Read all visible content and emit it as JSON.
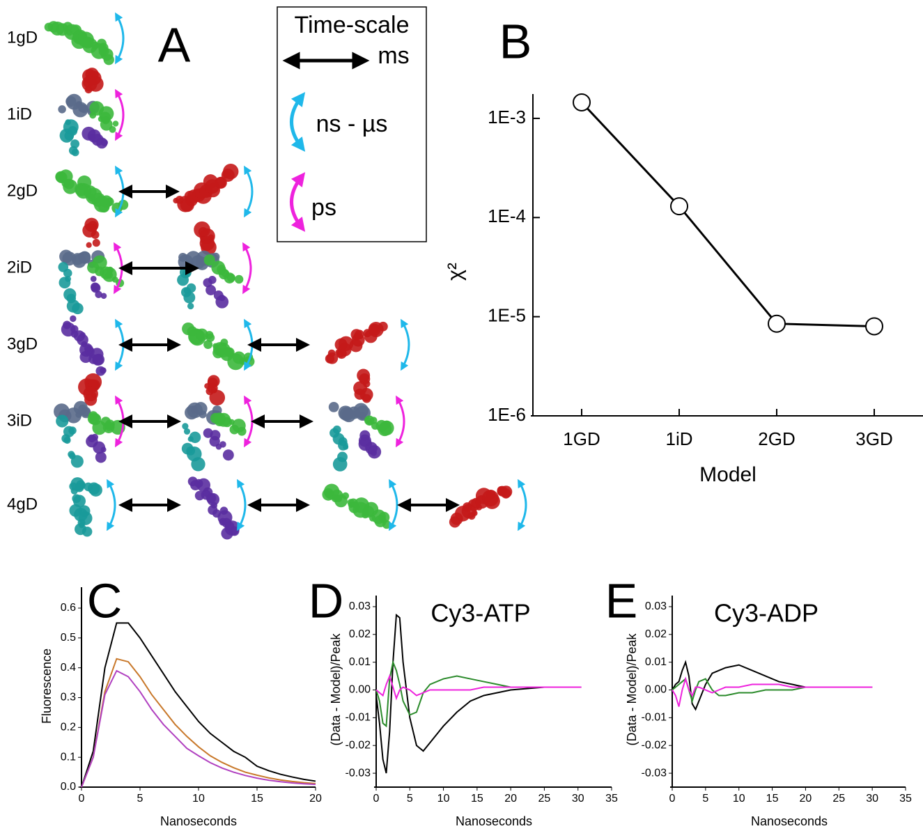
{
  "panel_a": {
    "label": "A",
    "rows": [
      "1gD",
      "1iD",
      "2gD",
      "2iD",
      "3gD",
      "3iD",
      "4gD"
    ],
    "legend": {
      "title": "Time-scale",
      "items": [
        "ms",
        "ns - µs",
        "ps"
      ]
    }
  },
  "chart_data": [
    {
      "type": "line",
      "panel_label": "B",
      "log_y": true,
      "xlabel": "Model",
      "ylabel": "χ²",
      "categories": [
        "1GD",
        "1iD",
        "2GD",
        "3GD"
      ],
      "series": [
        {
          "color": "#000000",
          "values": [
            0.00145,
            0.00013,
            8.5e-06,
            8e-06
          ]
        }
      ],
      "ylim": [
        1e-06,
        0.00176
      ],
      "yticks": [
        {
          "value": 1e-06,
          "label": "1E-6"
        },
        {
          "value": 1e-05,
          "label": "1E-5"
        },
        {
          "value": 0.0001,
          "label": "1E-4"
        },
        {
          "value": 0.001,
          "label": "1E-3"
        }
      ]
    },
    {
      "type": "line",
      "panel_label": "C",
      "xlabel": "Nanoseconds",
      "ylabel": "Fluorescence",
      "x": [
        0,
        1,
        2,
        3,
        4,
        5,
        6,
        7,
        8,
        9,
        10,
        11,
        12,
        13,
        14,
        15,
        16,
        17,
        18,
        19,
        20
      ],
      "series": [
        {
          "color": "#000000",
          "values": [
            0,
            0.12,
            0.4,
            0.55,
            0.55,
            0.5,
            0.44,
            0.38,
            0.32,
            0.27,
            0.22,
            0.18,
            0.15,
            0.12,
            0.1,
            0.07,
            0.055,
            0.043,
            0.034,
            0.026,
            0.02
          ]
        },
        {
          "color": "#c8782a",
          "values": [
            0,
            0.1,
            0.32,
            0.43,
            0.42,
            0.37,
            0.31,
            0.26,
            0.21,
            0.17,
            0.135,
            0.105,
            0.083,
            0.065,
            0.05,
            0.04,
            0.031,
            0.024,
            0.019,
            0.015,
            0.012
          ]
        },
        {
          "color": "#b040c0",
          "values": [
            0,
            0.1,
            0.31,
            0.39,
            0.37,
            0.32,
            0.26,
            0.21,
            0.17,
            0.13,
            0.105,
            0.082,
            0.064,
            0.05,
            0.039,
            0.03,
            0.023,
            0.018,
            0.014,
            0.011,
            0.009
          ]
        }
      ],
      "xlim": [
        0,
        20
      ],
      "xticks": [
        0,
        5,
        10,
        15,
        20
      ],
      "ylim": [
        0,
        0.67
      ],
      "yticks": [
        {
          "value": 0,
          "label": "0.0"
        },
        0.1,
        0.2,
        0.3,
        0.4,
        0.5,
        0.6
      ]
    },
    {
      "type": "line",
      "panel_label": "D",
      "title": "Cy3-ATP",
      "xlabel": "Nanoseconds",
      "ylabel": "(Data - Model)/Peak",
      "x": [
        0,
        0.5,
        1,
        1.5,
        2,
        2.5,
        3,
        3.5,
        4,
        5,
        6,
        7,
        8,
        10,
        12,
        14,
        16,
        18,
        20,
        25,
        30.5
      ],
      "series": [
        {
          "color": "#000000",
          "values": [
            -0.002,
            -0.012,
            -0.025,
            -0.03,
            -0.015,
            0.01,
            0.027,
            0.026,
            0.01,
            -0.01,
            -0.02,
            -0.022,
            -0.019,
            -0.013,
            -0.008,
            -0.004,
            -0.002,
            -0.001,
            0,
            0.001,
            0.001
          ]
        },
        {
          "color": "#2a8a2a",
          "values": [
            0,
            -0.004,
            -0.012,
            -0.013,
            0.004,
            0.01,
            0.007,
            0.002,
            -0.004,
            -0.009,
            -0.008,
            -0.001,
            0.002,
            0.004,
            0.005,
            0.004,
            0.003,
            0.002,
            0.001,
            0.001,
            0.001
          ]
        },
        {
          "color": "#ee22dd",
          "values": [
            0,
            -0.001,
            -0.002,
            0.002,
            0.005,
            0.001,
            -0.003,
            0,
            0.001,
            0,
            -0.002,
            -0.001,
            0,
            0,
            0,
            0,
            0.001,
            0.001,
            0.001,
            0.001,
            0.001
          ]
        }
      ],
      "xlim": [
        0,
        35
      ],
      "xticks": [
        0,
        5,
        10,
        15,
        20,
        25,
        30,
        35
      ],
      "ylim": [
        -0.035,
        0.034
      ],
      "yticks": [
        -0.03,
        -0.02,
        -0.01,
        {
          "value": 0,
          "label": "0.00"
        },
        0.01,
        0.02,
        0.03
      ]
    },
    {
      "type": "line",
      "panel_label": "E",
      "title": "Cy3-ADP",
      "xlabel": "Nanoseconds",
      "ylabel": "(Data - Model)/Peak",
      "x": [
        0,
        0.5,
        1,
        1.5,
        2,
        2.5,
        3,
        3.5,
        4,
        5,
        6,
        7,
        8,
        10,
        12,
        14,
        16,
        18,
        20,
        25,
        30
      ],
      "series": [
        {
          "color": "#000000",
          "values": [
            0,
            0.002,
            0.003,
            0.007,
            0.01,
            0.005,
            -0.005,
            -0.007,
            -0.004,
            0.002,
            0.006,
            0.007,
            0.008,
            0.009,
            0.007,
            0.005,
            0.003,
            0.002,
            0.001,
            0.001,
            0.001
          ]
        },
        {
          "color": "#2a8a2a",
          "values": [
            0,
            0.001,
            0.002,
            0.003,
            0.004,
            0,
            -0.004,
            0,
            0.003,
            0.004,
            0,
            -0.002,
            -0.002,
            -0.001,
            -0.001,
            0,
            0,
            0,
            0.001,
            0.001,
            0.001
          ]
        },
        {
          "color": "#ee22dd",
          "values": [
            0,
            -0.002,
            -0.006,
            0,
            0.004,
            0,
            -0.002,
            0.001,
            0.001,
            0,
            -0.001,
            0,
            0.001,
            0.001,
            0.002,
            0.002,
            0.002,
            0.001,
            0.001,
            0.001,
            0.001
          ]
        }
      ],
      "xlim": [
        0,
        35
      ],
      "xticks": [
        0,
        5,
        10,
        15,
        20,
        25,
        30,
        35
      ],
      "ylim": [
        -0.035,
        0.034
      ],
      "yticks": [
        -0.03,
        -0.02,
        -0.01,
        {
          "value": 0,
          "label": "0.00"
        },
        0.01,
        0.02,
        0.03
      ]
    }
  ]
}
